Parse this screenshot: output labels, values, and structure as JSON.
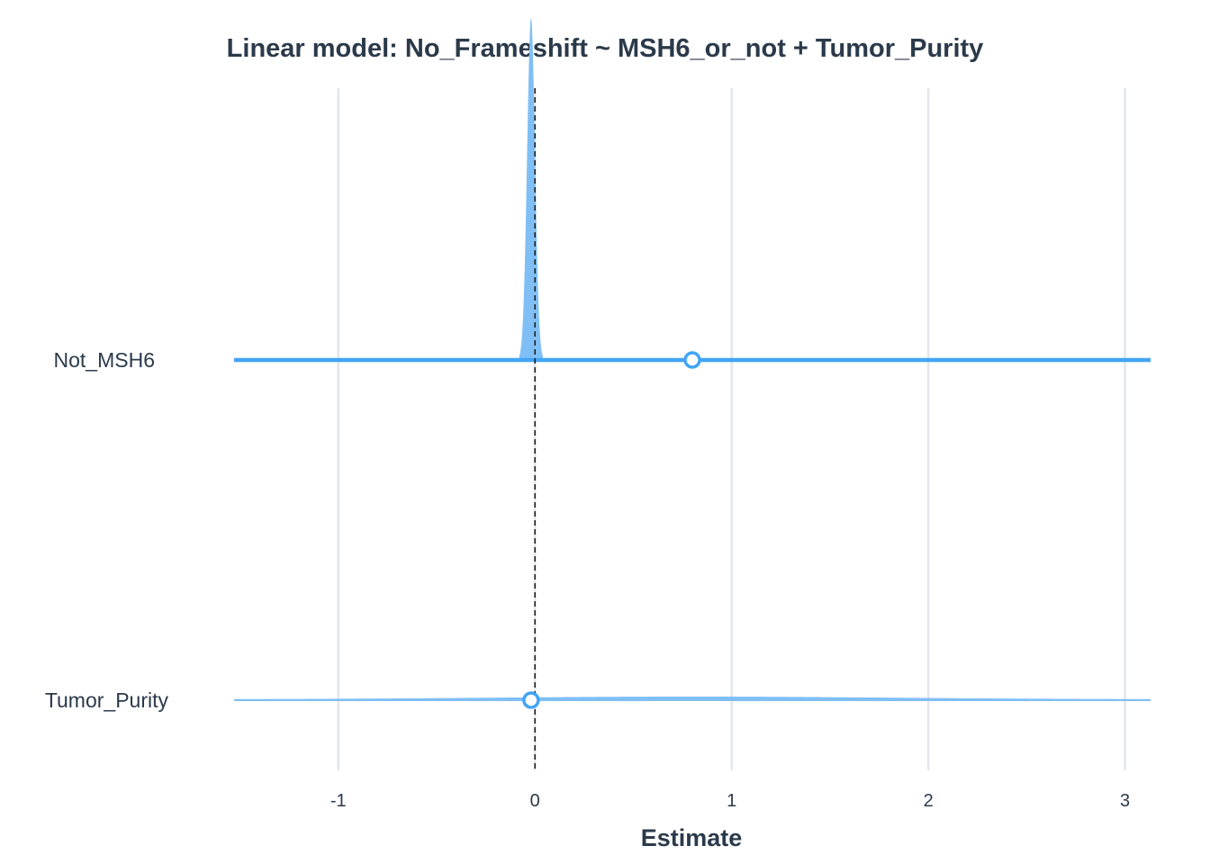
{
  "chart_data": {
    "type": "forest",
    "title": "Linear model: No_Frameshift ~ MSH6_or_not + Tumor_Purity",
    "xlabel": "Estimate",
    "ylabel": "",
    "xlim": [
      -1.53,
      3.13
    ],
    "x_ticks": [
      -1,
      0,
      1,
      2,
      3
    ],
    "x_tick_labels": [
      "-1",
      "0",
      "1",
      "2",
      "3"
    ],
    "reference_line": 0,
    "grid": "vertical",
    "categories": [
      "Not_MSH6",
      "Tumor_Purity"
    ],
    "series": [
      {
        "label": "Not_MSH6",
        "estimate": 0.8,
        "ci": [
          -1.53,
          3.13
        ],
        "density_peak": -0.02,
        "density_range": [
          -0.08,
          0.04
        ],
        "density_height": 0.6
      },
      {
        "label": "Tumor_Purity",
        "estimate": -0.02,
        "ci": [
          -1.53,
          3.13
        ],
        "density_peak": 0.8,
        "density_range": [
          -1.53,
          3.13
        ],
        "density_height": 0.012
      }
    ],
    "colors": {
      "line": "#42a5f5",
      "density": "#7fbff5",
      "grid": "#e3e6ea",
      "text": "#2b3a4a",
      "reference": "#222222"
    }
  }
}
